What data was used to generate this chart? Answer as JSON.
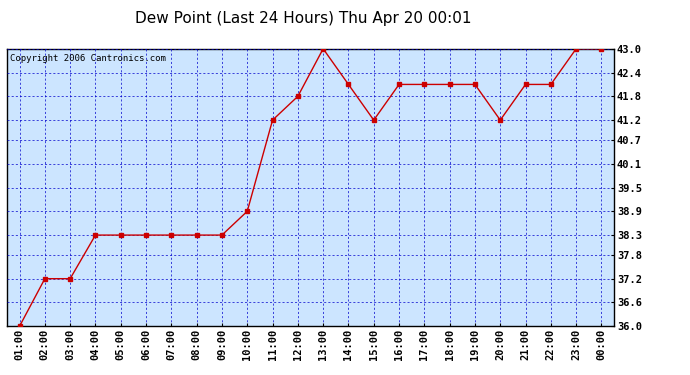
{
  "title": "Dew Point (Last 24 Hours) Thu Apr 20 00:01",
  "copyright": "Copyright 2006 Cantronics.com",
  "x_labels": [
    "01:00",
    "02:00",
    "03:00",
    "04:00",
    "05:00",
    "06:00",
    "07:00",
    "08:00",
    "09:00",
    "10:00",
    "11:00",
    "12:00",
    "13:00",
    "14:00",
    "15:00",
    "16:00",
    "17:00",
    "18:00",
    "19:00",
    "20:00",
    "21:00",
    "22:00",
    "23:00",
    "00:00"
  ],
  "y_values": [
    36.0,
    37.2,
    37.2,
    38.3,
    38.3,
    38.3,
    38.3,
    38.3,
    38.3,
    38.9,
    41.2,
    41.8,
    43.0,
    42.1,
    41.2,
    42.1,
    42.1,
    42.1,
    42.1,
    41.2,
    42.1,
    42.1,
    43.0,
    43.0
  ],
  "ylim": [
    36.0,
    43.0
  ],
  "y_ticks": [
    36.0,
    36.6,
    37.2,
    37.8,
    38.3,
    38.9,
    39.5,
    40.1,
    40.7,
    41.2,
    41.8,
    42.4,
    43.0
  ],
  "y_tick_labels": [
    "36.0",
    "36.6",
    "37.2",
    "37.8",
    "38.3",
    "38.9",
    "39.5",
    "40.1",
    "40.7",
    "41.2",
    "41.8",
    "42.4",
    "43.0"
  ],
  "line_color": "#cc0000",
  "marker_color": "#cc0000",
  "bg_color": "#cce5ff",
  "grid_color": "#0000cc",
  "border_color": "#000000",
  "title_color": "#000000",
  "copyright_color": "#000000",
  "title_fontsize": 11,
  "copyright_fontsize": 6.5,
  "tick_fontsize": 7.5,
  "fig_width": 6.9,
  "fig_height": 3.75,
  "dpi": 100
}
